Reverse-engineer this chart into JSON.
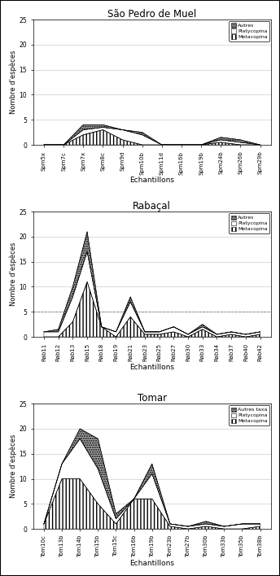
{
  "spm": {
    "title": "São Pedro de Muel",
    "labels": [
      "Spm5x",
      "Spm7c",
      "Spm7x",
      "Spm8c",
      "Spm9d",
      "Spm10b",
      "Spm11d",
      "Spm16b",
      "Spm19b",
      "Spm24b",
      "Spm26b",
      "Spm29b"
    ],
    "metacopina": [
      0,
      0,
      2,
      3,
      1,
      0,
      0,
      0,
      0,
      0.5,
      0,
      0
    ],
    "platycopina": [
      0,
      0,
      1,
      0.5,
      2,
      2,
      0,
      0,
      0,
      0.5,
      0.5,
      0
    ],
    "autres": [
      0,
      0,
      1,
      0.5,
      0,
      0.5,
      0,
      0,
      0,
      0.5,
      0.5,
      0
    ],
    "legend_autres": "Autres"
  },
  "rab": {
    "title": "Rabaçal",
    "labels": [
      "Rab11",
      "Rab12",
      "Rab13",
      "Rab15",
      "Rab18",
      "Rab19",
      "Rab21",
      "Rab23",
      "Rab25",
      "Rab27",
      "Rab30",
      "Rab33",
      "Rab34",
      "Rab37",
      "Rab40",
      "Rab42"
    ],
    "metacopina": [
      0,
      0,
      3,
      11,
      2,
      0,
      4,
      0.5,
      0.5,
      1,
      0,
      1.5,
      0,
      0.5,
      0,
      0.5
    ],
    "platycopina": [
      1,
      1,
      5,
      6,
      0,
      1,
      3,
      0.5,
      0.5,
      1,
      0.5,
      0.5,
      0.5,
      0.5,
      0.5,
      0.5
    ],
    "autres": [
      0,
      0.5,
      2,
      4,
      0,
      0,
      1,
      0,
      0,
      0,
      0,
      0.5,
      0,
      0,
      0,
      0
    ],
    "legend_autres": "Autres",
    "hline_y": 5
  },
  "tom": {
    "title": "Tomar",
    "labels": [
      "Tom10c",
      "Tom13b",
      "Tom14b",
      "Tom15b",
      "Tom15c",
      "Tom16b",
      "Tom19b",
      "Tom23b",
      "Tom27b",
      "Tom30b",
      "Tom33b",
      "Tom35b",
      "Tom38b"
    ],
    "metacopina": [
      1,
      10,
      10,
      5,
      1,
      6,
      6,
      0.5,
      0,
      0.5,
      0,
      0,
      0.5
    ],
    "platycopina": [
      0,
      3,
      8,
      7,
      1,
      0,
      5,
      0.5,
      0.5,
      0.5,
      0.5,
      1,
      0.5
    ],
    "autres": [
      0,
      0,
      2,
      6,
      1,
      0,
      2,
      0,
      0,
      0.5,
      0,
      0,
      0
    ],
    "legend_autres": "Autres taxa"
  },
  "ylabel": "Nombre d'espèces",
  "xlabel": "Echantillons",
  "ylim": [
    0,
    25
  ],
  "yticks": [
    0,
    5,
    10,
    15,
    20,
    25
  ],
  "fig_width": 3.44,
  "fig_height": 7.08,
  "dpi": 100
}
